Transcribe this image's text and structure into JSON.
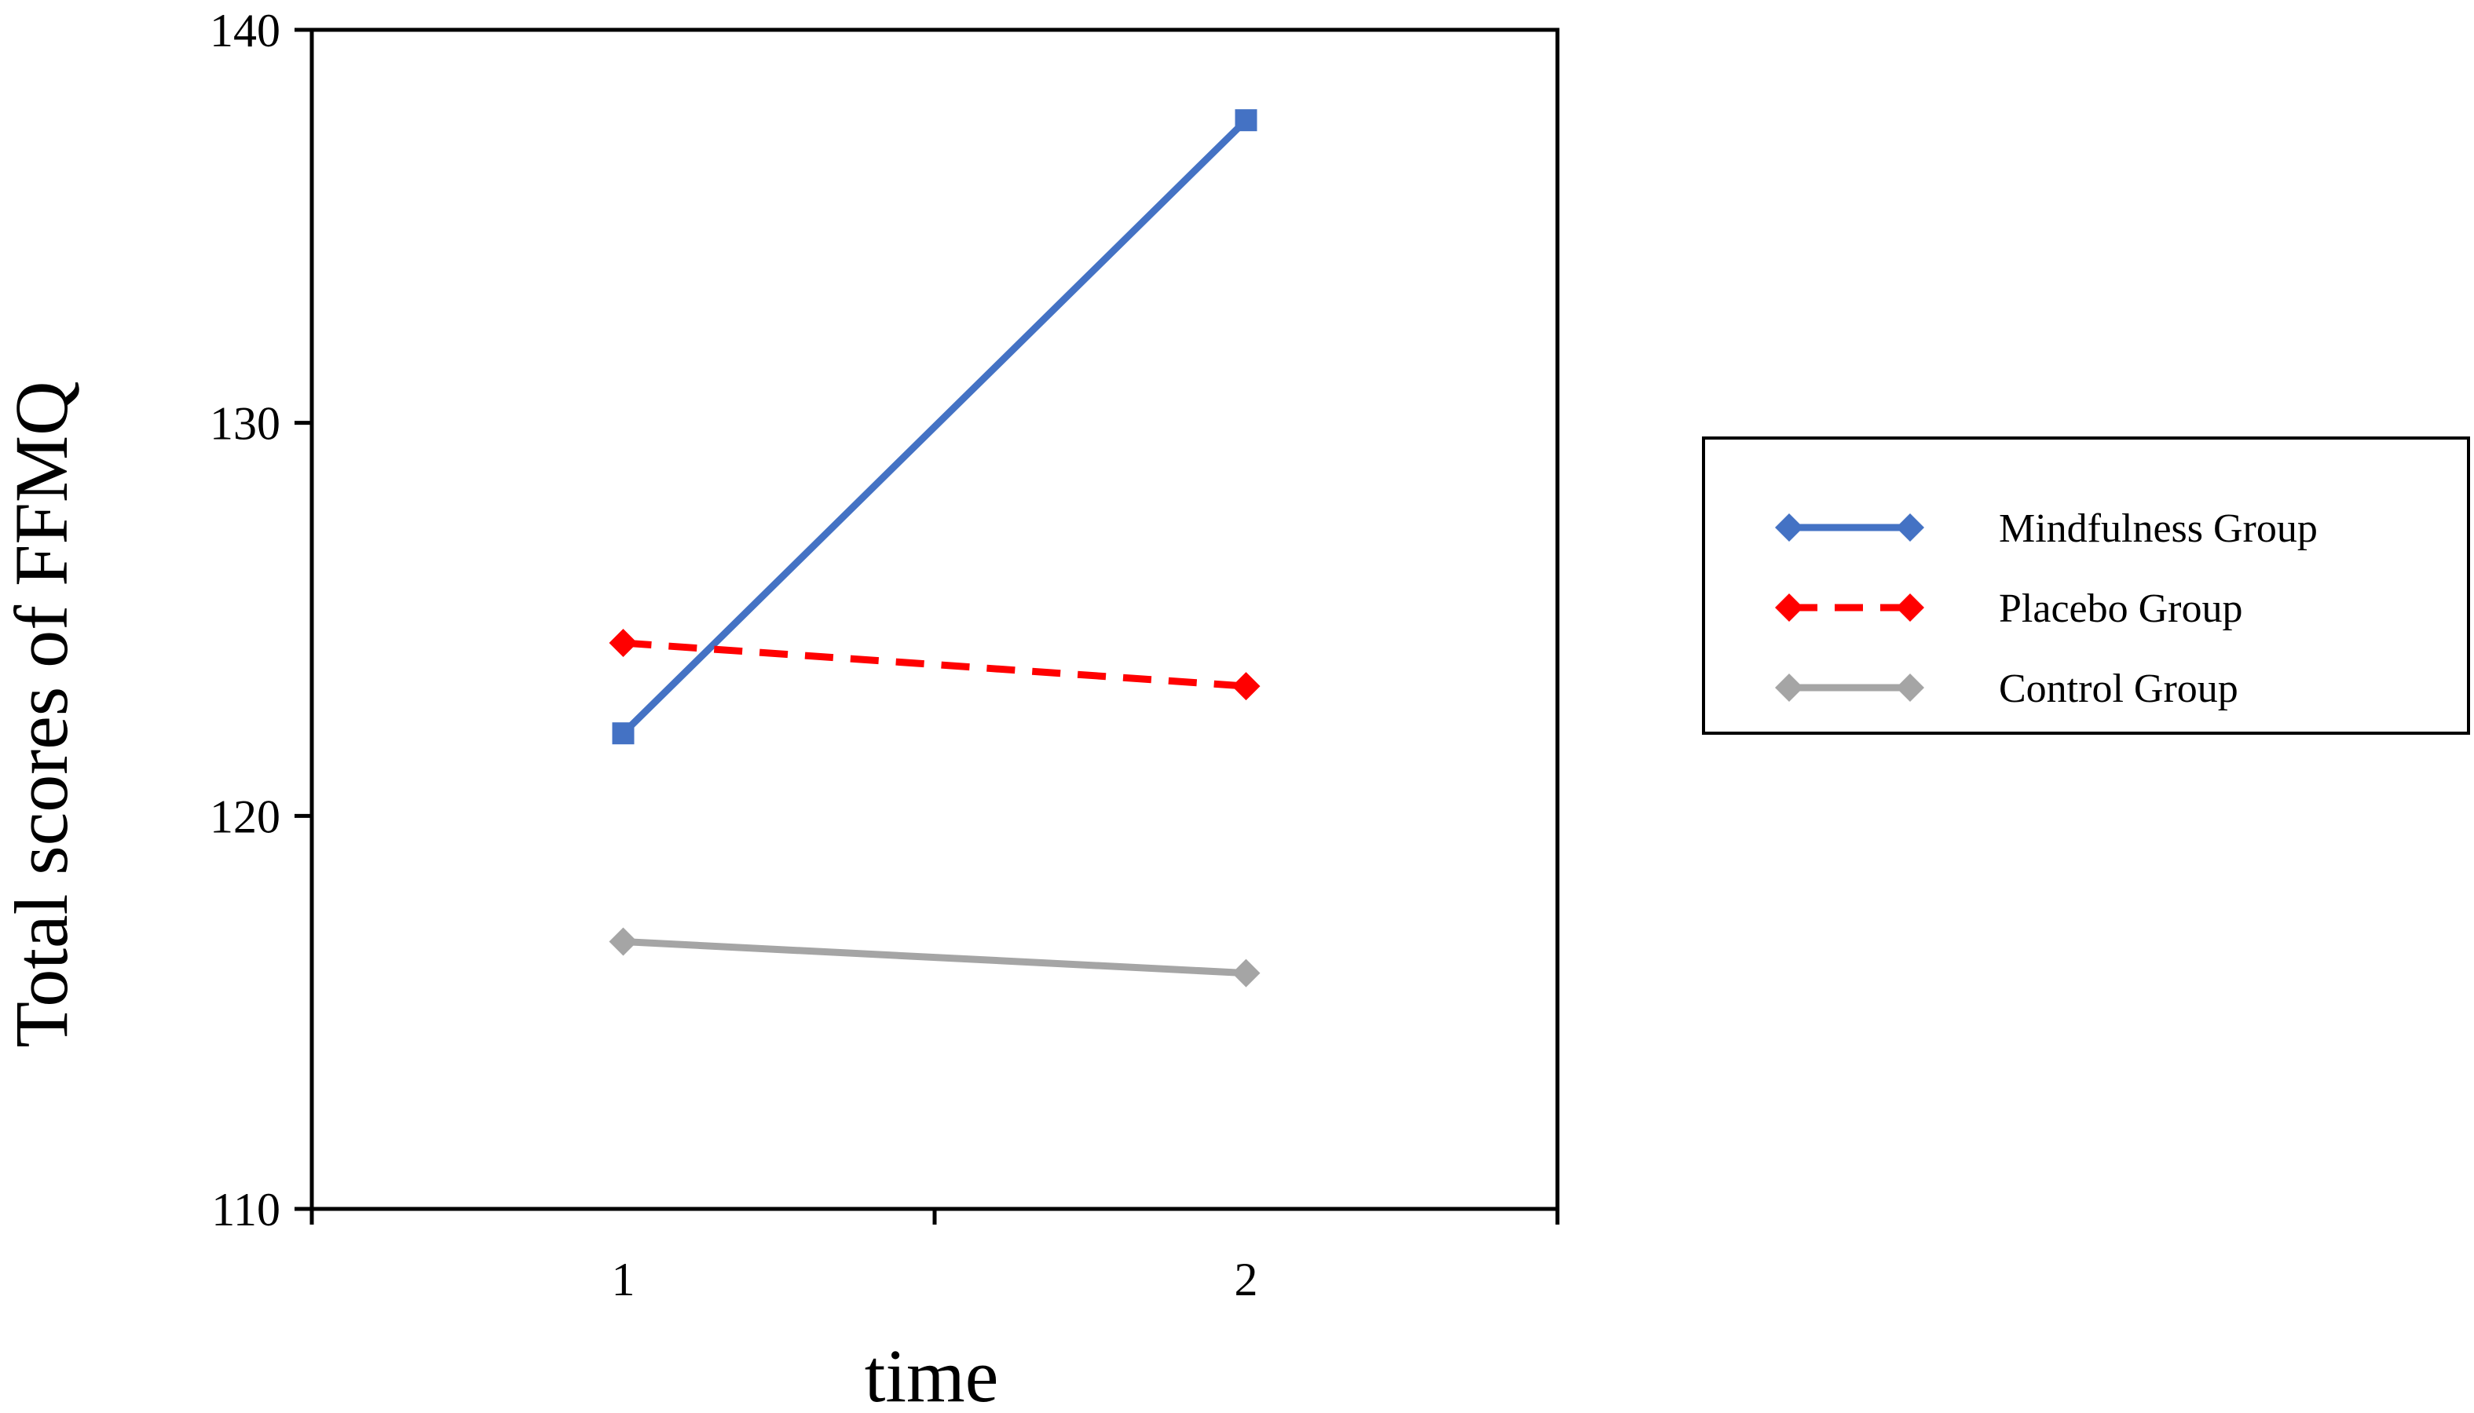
{
  "chart_data": {
    "type": "line",
    "title": "",
    "xlabel": "time",
    "ylabel": "Total scores of FFMQ",
    "x": [
      1,
      2
    ],
    "x_tick_labels": [
      "1",
      "2"
    ],
    "xlim": [
      0.5,
      2.5
    ],
    "ylim": [
      110,
      140
    ],
    "y_ticks": [
      110,
      120,
      130,
      140
    ],
    "y_tick_labels": [
      "110",
      "120",
      "130",
      "140"
    ],
    "grid": false,
    "legend_position": "right",
    "series": [
      {
        "name": "Mindfulness Group",
        "values": [
          122.1,
          137.7
        ],
        "color": "#4472c4",
        "dash": "solid",
        "marker": "square",
        "legend_marker": "diamond"
      },
      {
        "name": "Placebo Group",
        "values": [
          124.4,
          123.3
        ],
        "color": "#ff0000",
        "dash": "dashed",
        "marker": "diamond",
        "legend_marker": "diamond"
      },
      {
        "name": "Control Group",
        "values": [
          116.8,
          116.0
        ],
        "color": "#a5a5a5",
        "dash": "solid",
        "marker": "diamond",
        "legend_marker": "diamond"
      }
    ]
  }
}
